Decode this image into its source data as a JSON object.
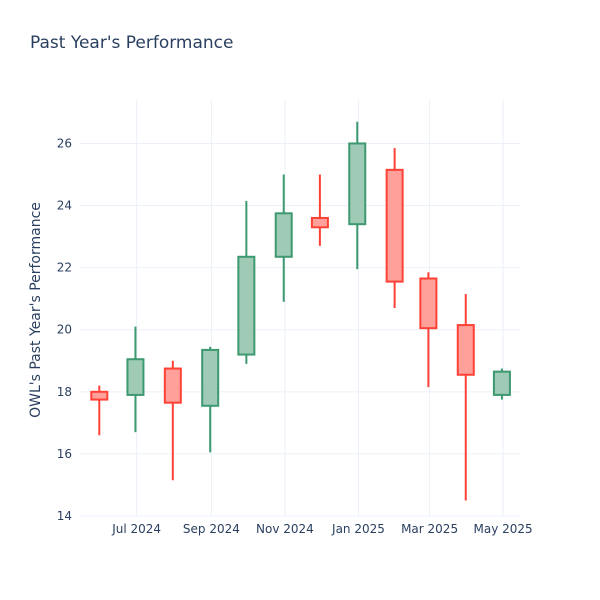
{
  "chart_data": {
    "type": "candlestick",
    "title": "Past Year's Performance",
    "xlabel": "",
    "ylabel": "OWL's Past Year's Performance",
    "ylim": [
      14,
      27.4
    ],
    "xlim": [
      "2024-05-15",
      "2025-05-15"
    ],
    "grid": true,
    "yticks": [
      14,
      16,
      18,
      20,
      22,
      24,
      26
    ],
    "xticks": [
      {
        "date": "2024-07-01",
        "label": "Jul 2024"
      },
      {
        "date": "2024-09-01",
        "label": "Sep 2024"
      },
      {
        "date": "2024-11-01",
        "label": "Nov 2024"
      },
      {
        "date": "2025-01-01",
        "label": "Jan 2025"
      },
      {
        "date": "2025-03-01",
        "label": "Mar 2025"
      },
      {
        "date": "2025-05-01",
        "label": "May 2025"
      }
    ],
    "colors": {
      "increasing_line": "#3d9970",
      "increasing_fill": "#9ecab6",
      "decreasing_line": "#ff4136",
      "decreasing_fill": "#ffa09a"
    },
    "candles": [
      {
        "date": "2024-05-31",
        "open": 18.0,
        "high": 18.2,
        "low": 16.6,
        "close": 17.75
      },
      {
        "date": "2024-06-30",
        "open": 17.9,
        "high": 20.1,
        "low": 16.7,
        "close": 19.05
      },
      {
        "date": "2024-07-31",
        "open": 18.75,
        "high": 19.0,
        "low": 15.15,
        "close": 17.65
      },
      {
        "date": "2024-08-31",
        "open": 17.55,
        "high": 19.45,
        "low": 16.05,
        "close": 19.35
      },
      {
        "date": "2024-09-30",
        "open": 19.2,
        "high": 24.15,
        "low": 18.9,
        "close": 22.35
      },
      {
        "date": "2024-10-31",
        "open": 22.35,
        "high": 25.0,
        "low": 20.9,
        "close": 23.75
      },
      {
        "date": "2024-11-30",
        "open": 23.6,
        "high": 25.0,
        "low": 22.7,
        "close": 23.3
      },
      {
        "date": "2024-12-31",
        "open": 23.4,
        "high": 26.7,
        "low": 21.95,
        "close": 26.0
      },
      {
        "date": "2025-01-31",
        "open": 25.15,
        "high": 25.85,
        "low": 20.7,
        "close": 21.55
      },
      {
        "date": "2025-02-28",
        "open": 21.65,
        "high": 21.85,
        "low": 18.15,
        "close": 20.05
      },
      {
        "date": "2025-03-31",
        "open": 20.15,
        "high": 21.15,
        "low": 14.5,
        "close": 18.55
      },
      {
        "date": "2025-04-30",
        "open": 17.9,
        "high": 18.75,
        "low": 17.75,
        "close": 18.65
      }
    ]
  }
}
